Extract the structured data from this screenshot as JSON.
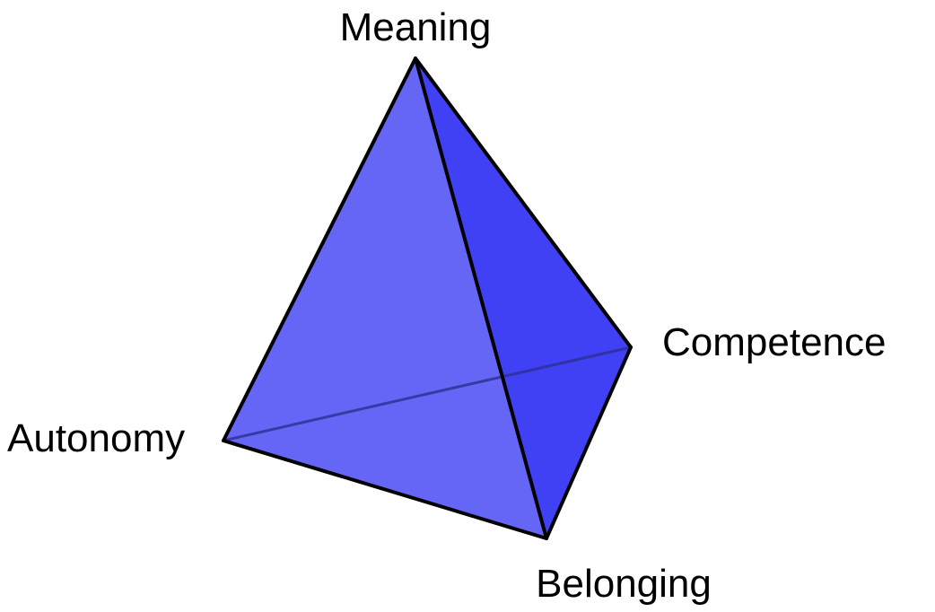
{
  "diagram": {
    "vertices": {
      "top": "Meaning",
      "right": "Competence",
      "left": "Autonomy",
      "bottom": "Belonging"
    },
    "colors": {
      "front_face": "#6666f6",
      "right_face": "#4040f4",
      "edges": "#000000",
      "hidden_edge": "#2a2f8f",
      "background": "#ffffff"
    }
  }
}
